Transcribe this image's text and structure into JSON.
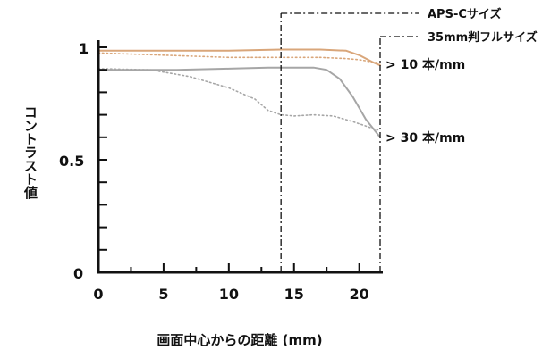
{
  "chart_data": {
    "type": "line",
    "title": "",
    "xlabel": "画面中心からの距離 (mm)",
    "ylabel": "コントラスト値",
    "xlim": [
      0,
      21.6
    ],
    "ylim": [
      0,
      1
    ],
    "x_ticks": [
      "0",
      "5",
      "10",
      "15",
      "20"
    ],
    "x_tick_values": [
      0,
      5,
      10,
      15,
      20
    ],
    "y_ticks": [
      "0",
      "0.5",
      "1"
    ],
    "y_tick_values": [
      0,
      0.5,
      1
    ],
    "markers": [
      {
        "label": "APS-Cサイズ",
        "x": 14.0
      },
      {
        "label": "35mm判フルサイズ",
        "x": 21.6
      }
    ],
    "series": [
      {
        "name": "10 本/mm",
        "style": "solid",
        "color": "#d9a67a",
        "x": [
          0,
          5,
          10,
          14,
          17,
          19,
          20,
          21,
          21.6
        ],
        "y": [
          0.985,
          0.985,
          0.985,
          0.99,
          0.99,
          0.985,
          0.965,
          0.935,
          0.92
        ]
      },
      {
        "name": "10 本/mm",
        "style": "dotted",
        "color": "#d9a67a",
        "x": [
          0,
          5,
          10,
          14,
          17,
          19,
          20,
          21,
          21.6
        ],
        "y": [
          0.975,
          0.965,
          0.955,
          0.955,
          0.955,
          0.95,
          0.945,
          0.935,
          0.93
        ]
      },
      {
        "name": "30 本/mm",
        "style": "solid",
        "color": "#a6a6a6",
        "x": [
          0,
          3,
          6,
          10,
          13,
          15,
          16.5,
          17.5,
          18.5,
          19.5,
          20.5,
          21.6
        ],
        "y": [
          0.9,
          0.9,
          0.9,
          0.905,
          0.91,
          0.91,
          0.91,
          0.9,
          0.86,
          0.78,
          0.68,
          0.6
        ]
      },
      {
        "name": "30 本/mm",
        "style": "dotted",
        "color": "#a6a6a6",
        "x": [
          0,
          4,
          7,
          10,
          12,
          13,
          14,
          15,
          16.5,
          18,
          19.5,
          21,
          21.6
        ],
        "y": [
          0.905,
          0.9,
          0.87,
          0.82,
          0.77,
          0.72,
          0.7,
          0.695,
          0.7,
          0.695,
          0.67,
          0.64,
          0.63
        ]
      }
    ],
    "annotations": [
      {
        "text": "> 10 本/mm",
        "x": 21.6,
        "y": 0.925
      },
      {
        "text": "> 30 本/mm",
        "x": 21.6,
        "y": 0.6
      }
    ],
    "grid": false
  }
}
